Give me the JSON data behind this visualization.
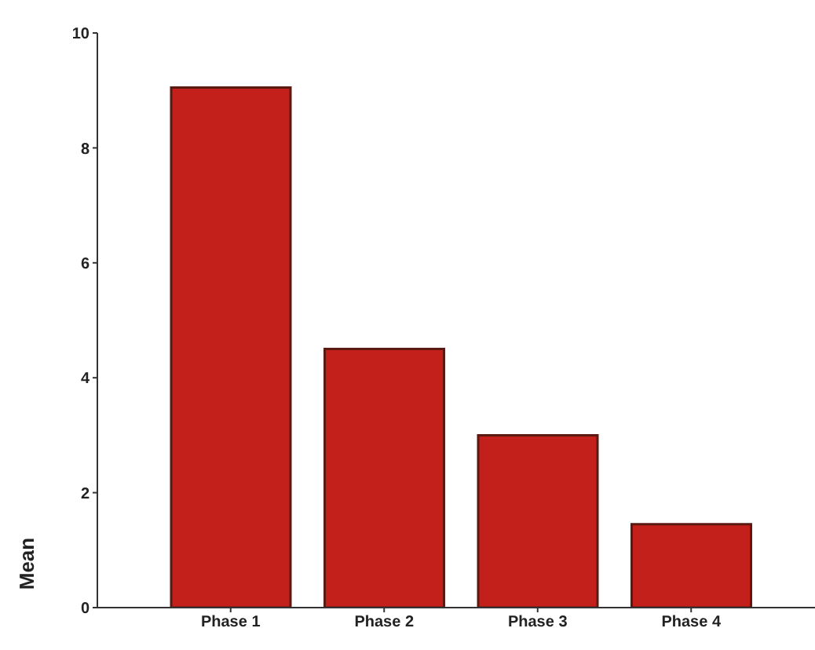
{
  "chart_data": {
    "type": "bar",
    "ylabel": "Mean",
    "categories": [
      "Phase 1",
      "Phase 2",
      "Phase 3",
      "Phase 4"
    ],
    "values": [
      9.05,
      4.5,
      3.0,
      1.45
    ],
    "color": "#c4201b",
    "ylim": [
      0,
      10
    ],
    "yticks": [
      0,
      2,
      4,
      6,
      8,
      10
    ],
    "grid": false,
    "legend": false
  }
}
